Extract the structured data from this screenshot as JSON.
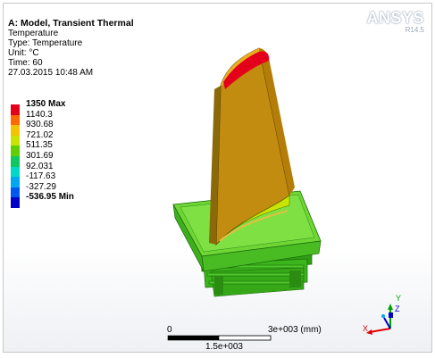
{
  "result": {
    "title": "A: Model, Transient Thermal",
    "name": "Temperature",
    "type": "Type: Temperature",
    "unit": "Unit: °C",
    "time": "Time: 60",
    "date": "27.03.2015 10:48 AM"
  },
  "logo": {
    "brand": "ANSYS",
    "version": "R14.5"
  },
  "legend": [
    {
      "label": "1350 Max",
      "color": "#e4001a",
      "bold": true
    },
    {
      "label": "1140.3",
      "color": "#ff6a00",
      "bold": false
    },
    {
      "label": "930.68",
      "color": "#f4c400",
      "bold": false
    },
    {
      "label": "721.02",
      "color": "#c8e400",
      "bold": false
    },
    {
      "label": "511.35",
      "color": "#5ed000",
      "bold": false
    },
    {
      "label": "301.69",
      "color": "#10c860",
      "bold": false
    },
    {
      "label": "92.031",
      "color": "#00d8c8",
      "bold": false
    },
    {
      "label": "-117.63",
      "color": "#00a8f0",
      "bold": false
    },
    {
      "label": "-327.29",
      "color": "#0058f0",
      "bold": false
    },
    {
      "label": "-536.95 Min",
      "color": "#0000c8",
      "bold": true
    }
  ],
  "scale": {
    "start": "0",
    "end": "3e+003 (mm)",
    "mid": "1.5e+003"
  },
  "triad": {
    "x": "X",
    "y": "Y",
    "z": "Z"
  }
}
